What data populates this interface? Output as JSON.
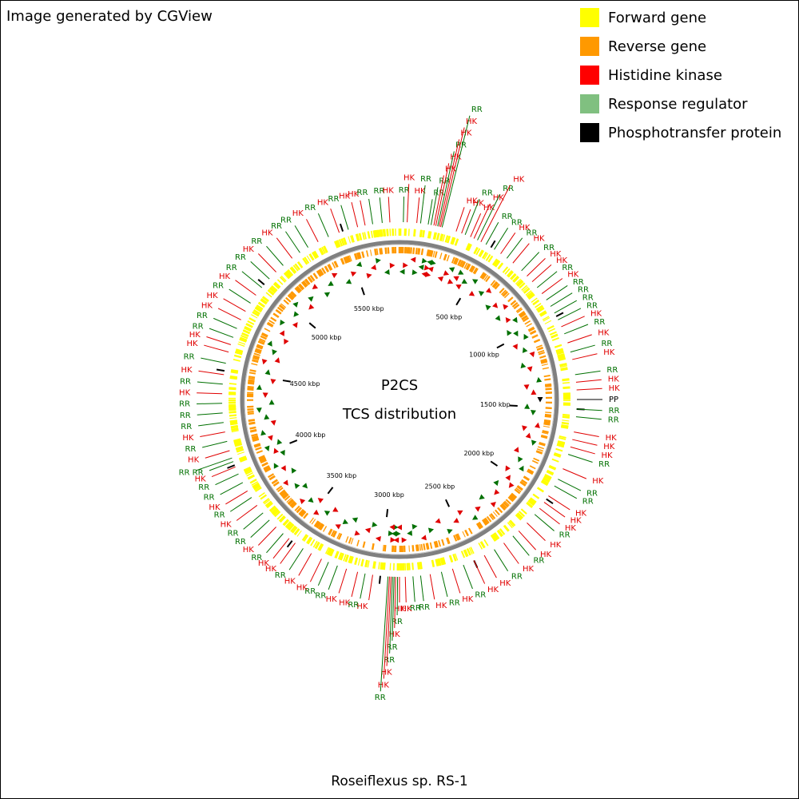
{
  "header": {
    "credit": "Image generated by CGView"
  },
  "legend": [
    {
      "label": "Forward gene",
      "color": "#ffff00"
    },
    {
      "label": "Reverse gene",
      "color": "#ff9900"
    },
    {
      "label": "Histidine kinase",
      "color": "#ff0000"
    },
    {
      "label": "Response regulator",
      "color": "#80c080"
    },
    {
      "label": "Phosphotransfer protein",
      "color": "#000000"
    }
  ],
  "center": {
    "title": "P2CS",
    "subtitle": "TCS distribution"
  },
  "footer": "Roseiflexus sp. RS-1",
  "map": {
    "range_kbp": [
      0,
      5800
    ],
    "ticks": [
      {
        "value": 500,
        "label": "500 kbp"
      },
      {
        "value": 1000,
        "label": "1000 kbp"
      },
      {
        "value": 1500,
        "label": "1500 kbp"
      },
      {
        "value": 2000,
        "label": "2000 kbp"
      },
      {
        "value": 2500,
        "label": "2500 kbp"
      },
      {
        "value": 3000,
        "label": "3000 kbp"
      },
      {
        "value": 3500,
        "label": "3500 kbp"
      },
      {
        "value": 4000,
        "label": "4000 kbp"
      },
      {
        "value": 4500,
        "label": "4500 kbp"
      },
      {
        "value": 5000,
        "label": "5000 kbp"
      },
      {
        "value": 5500,
        "label": "5500 kbp"
      }
    ],
    "label_colors": {
      "HK": "#e00000",
      "RR": "#007000",
      "PP": "#000000"
    },
    "features": [
      {
        "kbp": 20,
        "label": "RR"
      },
      {
        "kbp": 40,
        "label": "HK"
      },
      {
        "kbp": 90,
        "label": "HK"
      },
      {
        "kbp": 110,
        "label": "RR"
      },
      {
        "kbp": 150,
        "label": "RR"
      },
      {
        "kbp": 165,
        "label": "RR"
      },
      {
        "kbp": 180,
        "label": "HK"
      },
      {
        "kbp": 190,
        "label": "HK"
      },
      {
        "kbp": 200,
        "label": "RR"
      },
      {
        "kbp": 208,
        "label": "HK"
      },
      {
        "kbp": 216,
        "label": "HK"
      },
      {
        "kbp": 224,
        "label": "RR"
      },
      {
        "kbp": 300,
        "label": "HK"
      },
      {
        "kbp": 330,
        "label": "HK"
      },
      {
        "kbp": 350,
        "label": "RR"
      },
      {
        "kbp": 380,
        "label": "HK"
      },
      {
        "kbp": 400,
        "label": "HK"
      },
      {
        "kbp": 420,
        "label": "RR"
      },
      {
        "kbp": 440,
        "label": "HK"
      },
      {
        "kbp": 470,
        "label": "RR"
      },
      {
        "kbp": 520,
        "label": "RR"
      },
      {
        "kbp": 560,
        "label": "HK"
      },
      {
        "kbp": 600,
        "label": "RR"
      },
      {
        "kbp": 640,
        "label": "HK"
      },
      {
        "kbp": 700,
        "label": "RR"
      },
      {
        "kbp": 740,
        "label": "HK"
      },
      {
        "kbp": 780,
        "label": "HK"
      },
      {
        "kbp": 820,
        "label": "RR"
      },
      {
        "kbp": 860,
        "label": "HK"
      },
      {
        "kbp": 900,
        "label": "RR"
      },
      {
        "kbp": 940,
        "label": "RR"
      },
      {
        "kbp": 980,
        "label": "RR"
      },
      {
        "kbp": 1020,
        "label": "RR"
      },
      {
        "kbp": 1060,
        "label": "HK"
      },
      {
        "kbp": 1100,
        "label": "RR"
      },
      {
        "kbp": 1150,
        "label": "HK"
      },
      {
        "kbp": 1200,
        "label": "RR"
      },
      {
        "kbp": 1240,
        "label": "HK"
      },
      {
        "kbp": 1320,
        "label": "RR"
      },
      {
        "kbp": 1360,
        "label": "HK"
      },
      {
        "kbp": 1400,
        "label": "HK"
      },
      {
        "kbp": 1450,
        "label": "PP"
      },
      {
        "kbp": 1500,
        "label": "RR"
      },
      {
        "kbp": 1540,
        "label": "RR"
      },
      {
        "kbp": 1620,
        "label": "HK"
      },
      {
        "kbp": 1660,
        "label": "HK"
      },
      {
        "kbp": 1700,
        "label": "HK"
      },
      {
        "kbp": 1740,
        "label": "RR"
      },
      {
        "kbp": 1820,
        "label": "HK"
      },
      {
        "kbp": 1880,
        "label": "RR"
      },
      {
        "kbp": 1920,
        "label": "RR"
      },
      {
        "kbp": 1980,
        "label": "HK"
      },
      {
        "kbp": 2020,
        "label": "HK"
      },
      {
        "kbp": 2060,
        "label": "HK"
      },
      {
        "kbp": 2100,
        "label": "RR"
      },
      {
        "kbp": 2160,
        "label": "HK"
      },
      {
        "kbp": 2220,
        "label": "HK"
      },
      {
        "kbp": 2260,
        "label": "RR"
      },
      {
        "kbp": 2320,
        "label": "HK"
      },
      {
        "kbp": 2380,
        "label": "RR"
      },
      {
        "kbp": 2440,
        "label": "HK"
      },
      {
        "kbp": 2500,
        "label": "HK"
      },
      {
        "kbp": 2560,
        "label": "RR"
      },
      {
        "kbp": 2620,
        "label": "HK"
      },
      {
        "kbp": 2680,
        "label": "RR"
      },
      {
        "kbp": 2740,
        "label": "HK"
      },
      {
        "kbp": 2790,
        "label": "RR"
      },
      {
        "kbp": 2830,
        "label": "RR"
      },
      {
        "kbp": 2870,
        "label": "HK"
      },
      {
        "kbp": 2900,
        "label": "HK"
      },
      {
        "kbp": 2910,
        "label": "RR"
      },
      {
        "kbp": 2920,
        "label": "HK"
      },
      {
        "kbp": 2928,
        "label": "RR"
      },
      {
        "kbp": 2936,
        "label": "RR"
      },
      {
        "kbp": 2944,
        "label": "HK"
      },
      {
        "kbp": 2952,
        "label": "HK"
      },
      {
        "kbp": 2960,
        "label": "RR"
      },
      {
        "kbp": 3040,
        "label": "HK"
      },
      {
        "kbp": 3080,
        "label": "RR"
      },
      {
        "kbp": 3120,
        "label": "HK"
      },
      {
        "kbp": 3180,
        "label": "HK"
      },
      {
        "kbp": 3230,
        "label": "RR"
      },
      {
        "kbp": 3280,
        "label": "RR"
      },
      {
        "kbp": 3320,
        "label": "HK"
      },
      {
        "kbp": 3380,
        "label": "HK"
      },
      {
        "kbp": 3430,
        "label": "RR"
      },
      {
        "kbp": 3480,
        "label": "HK"
      },
      {
        "kbp": 3520,
        "label": "HK"
      },
      {
        "kbp": 3560,
        "label": "RR"
      },
      {
        "kbp": 3610,
        "label": "HK"
      },
      {
        "kbp": 3660,
        "label": "RR"
      },
      {
        "kbp": 3710,
        "label": "RR"
      },
      {
        "kbp": 3760,
        "label": "HK"
      },
      {
        "kbp": 3810,
        "label": "RR"
      },
      {
        "kbp": 3850,
        "label": "HK"
      },
      {
        "kbp": 3900,
        "label": "RR"
      },
      {
        "kbp": 3950,
        "label": "RR"
      },
      {
        "kbp": 3990,
        "label": "HK"
      },
      {
        "kbp": 4020,
        "label": "RR"
      },
      {
        "kbp": 4040,
        "label": "RR"
      },
      {
        "kbp": 4080,
        "label": "HK"
      },
      {
        "kbp": 4130,
        "label": "RR"
      },
      {
        "kbp": 4180,
        "label": "HK"
      },
      {
        "kbp": 4230,
        "label": "RR"
      },
      {
        "kbp": 4280,
        "label": "RR"
      },
      {
        "kbp": 4330,
        "label": "RR"
      },
      {
        "kbp": 4380,
        "label": "HK"
      },
      {
        "kbp": 4430,
        "label": "RR"
      },
      {
        "kbp": 4480,
        "label": "HK"
      },
      {
        "kbp": 4540,
        "label": "RR"
      },
      {
        "kbp": 4600,
        "label": "HK"
      },
      {
        "kbp": 4640,
        "label": "HK"
      },
      {
        "kbp": 4680,
        "label": "RR"
      },
      {
        "kbp": 4730,
        "label": "RR"
      },
      {
        "kbp": 4780,
        "label": "HK"
      },
      {
        "kbp": 4830,
        "label": "HK"
      },
      {
        "kbp": 4880,
        "label": "RR"
      },
      {
        "kbp": 4930,
        "label": "HK"
      },
      {
        "kbp": 4980,
        "label": "RR"
      },
      {
        "kbp": 5040,
        "label": "RR"
      },
      {
        "kbp": 5090,
        "label": "HK"
      },
      {
        "kbp": 5140,
        "label": "RR"
      },
      {
        "kbp": 5200,
        "label": "HK"
      },
      {
        "kbp": 5250,
        "label": "RR"
      },
      {
        "kbp": 5300,
        "label": "RR"
      },
      {
        "kbp": 5360,
        "label": "HK"
      },
      {
        "kbp": 5420,
        "label": "RR"
      },
      {
        "kbp": 5480,
        "label": "HK"
      },
      {
        "kbp": 5530,
        "label": "RR"
      },
      {
        "kbp": 5580,
        "label": "HK"
      },
      {
        "kbp": 5620,
        "label": "HK"
      },
      {
        "kbp": 5660,
        "label": "RR"
      },
      {
        "kbp": 5710,
        "label": "RR"
      },
      {
        "kbp": 5750,
        "label": "HK"
      }
    ]
  }
}
